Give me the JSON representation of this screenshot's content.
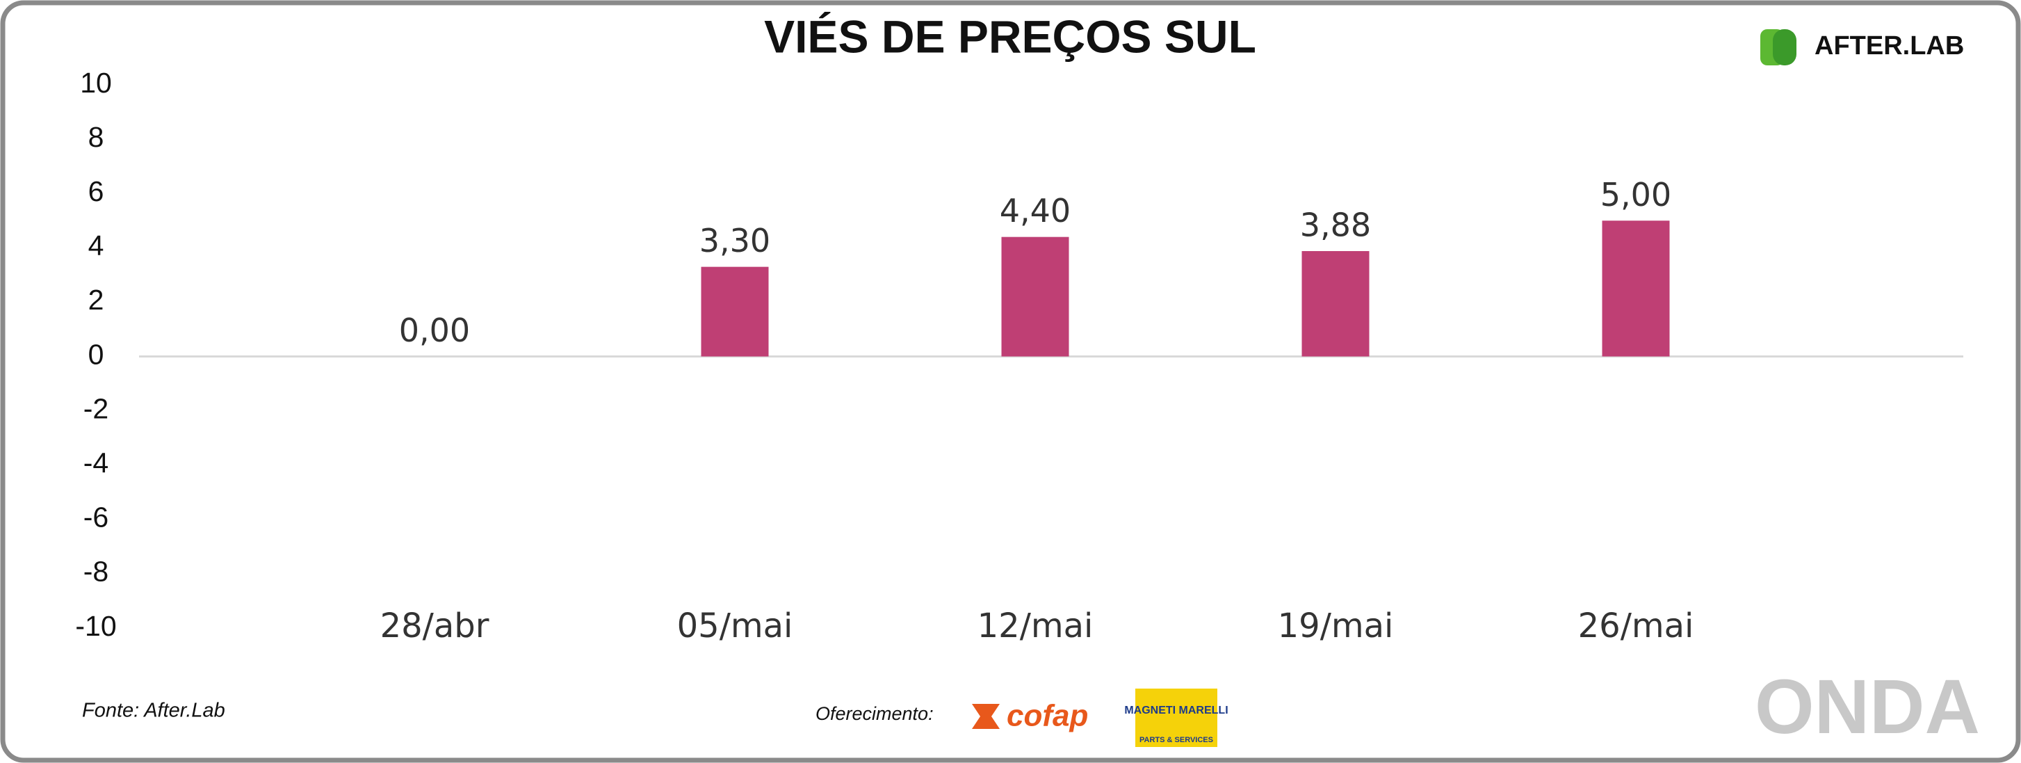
{
  "chart_data": {
    "type": "bar",
    "title": "VIÉS DE PREÇOS SUL",
    "categories": [
      "28/abr",
      "05/mai",
      "12/mai",
      "19/mai",
      "26/mai"
    ],
    "values": [
      0,
      3.3,
      4.4,
      3.88,
      5
    ],
    "value_labels": [
      "0,00",
      "3,30",
      "4,40",
      "3,88",
      "5,00"
    ],
    "color": "#bf3f74",
    "ylim": [
      -10,
      10
    ],
    "yticks": [
      -10,
      -8,
      -6,
      -4,
      -2,
      0,
      2,
      4,
      6,
      8,
      10
    ],
    "grid": false
  },
  "footer": {
    "source": "Fonte: After.Lab",
    "sponsor_label": "Oferecimento:"
  },
  "logos": {
    "afterlab": "AFTER.LAB",
    "cofap": "cofap",
    "magneti": "MAGNETI MARELLI",
    "magneti_sub": "PARTS & SERVICES",
    "onda": "ONDA"
  }
}
